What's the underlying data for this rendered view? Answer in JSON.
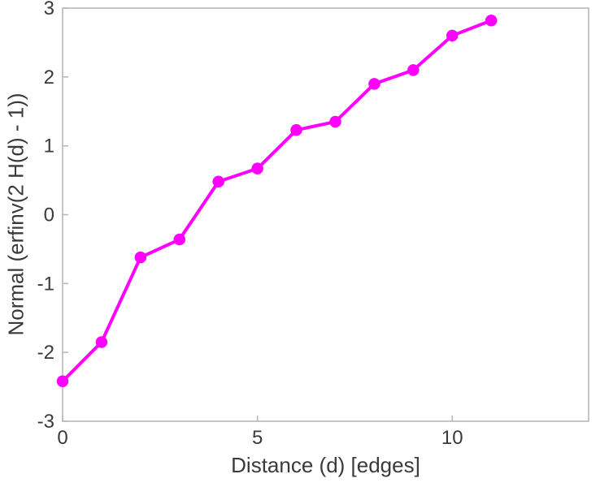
{
  "chart_data": {
    "type": "line",
    "title": "",
    "xlabel": "Distance (d) [edges]",
    "ylabel": "Normal (erfinv(2 H(d) - 1))",
    "x": [
      0,
      1,
      2,
      3,
      4,
      5,
      6,
      7,
      8,
      9,
      10,
      11
    ],
    "y": [
      -2.42,
      -1.85,
      -0.62,
      -0.36,
      0.48,
      0.67,
      1.23,
      1.35,
      1.9,
      2.1,
      2.6,
      2.82
    ],
    "xlim": [
      0,
      13.5
    ],
    "ylim": [
      -3,
      3
    ],
    "xticks": [
      0,
      5,
      10
    ],
    "yticks": [
      -3,
      -2,
      -1,
      0,
      1,
      2,
      3
    ],
    "line_color": "#ff00ff",
    "marker": "circle",
    "marker_color": "#ff00ff",
    "axis_color": "#b8b8b8",
    "tick_label_color": "#3a3a3a",
    "grid": false,
    "legend": null
  }
}
